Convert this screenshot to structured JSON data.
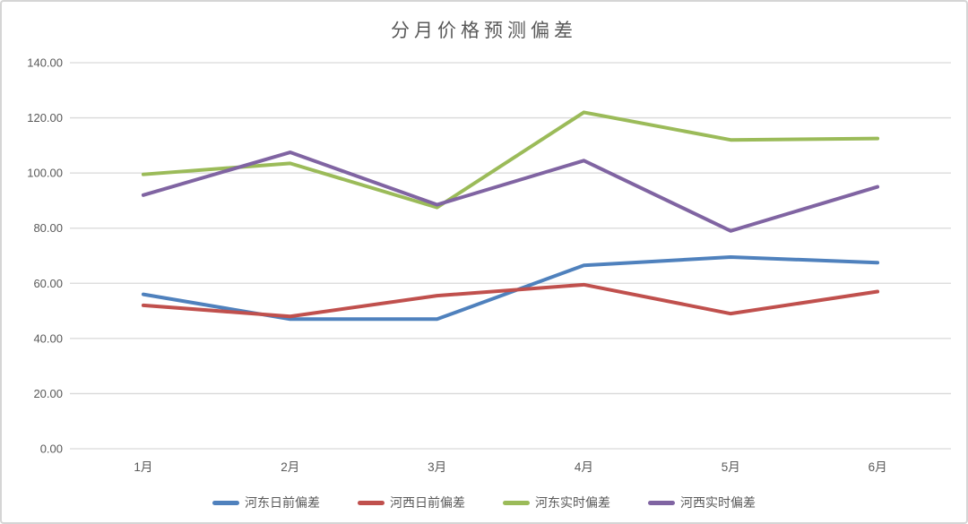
{
  "chart_data": {
    "type": "line",
    "title": "分月价格预测偏差",
    "categories": [
      "1月",
      "2月",
      "3月",
      "4月",
      "5月",
      "6月"
    ],
    "series": [
      {
        "key": "hedong-dayahead",
        "name": "河东日前偏差",
        "color": "#4F81BD",
        "values": [
          56,
          47,
          47,
          66.5,
          69.5,
          67.5
        ]
      },
      {
        "key": "hexi-dayahead",
        "name": "河西日前偏差",
        "color": "#C0504D",
        "values": [
          52,
          48,
          55.5,
          59.5,
          49,
          57
        ]
      },
      {
        "key": "hedong-realtime",
        "name": "河东实时偏差",
        "color": "#9BBB59",
        "values": [
          99.5,
          103.5,
          87.5,
          122,
          112,
          112.5
        ]
      },
      {
        "key": "hexi-realtime",
        "name": "河西实时偏差",
        "color": "#8064A2",
        "values": [
          92,
          107.5,
          88.5,
          104.5,
          79,
          95
        ]
      }
    ],
    "y_axis": {
      "min": 0,
      "max": 140,
      "step": 20,
      "tick_labels": [
        "0.00",
        "20.00",
        "40.00",
        "60.00",
        "80.00",
        "100.00",
        "120.00",
        "140.00"
      ]
    },
    "xlabel": "",
    "ylabel": "",
    "grid": true,
    "legend_position": "bottom"
  },
  "styles": {
    "title_color": "#595959",
    "axis_label_color": "#595959",
    "gridline_color": "#d9d9d9",
    "border_color": "#d5d5d5",
    "background": "#ffffff"
  }
}
